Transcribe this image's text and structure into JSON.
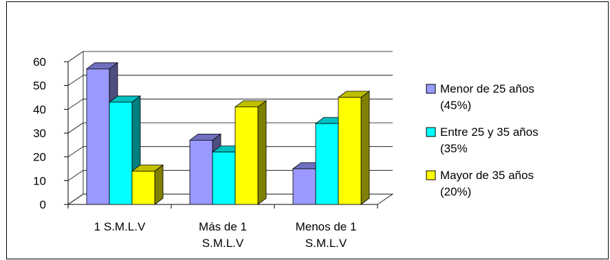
{
  "chart_data": {
    "type": "bar",
    "style": "3d-clustered-column",
    "title": "",
    "xlabel": "",
    "ylabel": "",
    "ylim": [
      0,
      60
    ],
    "yticks": [
      "0",
      "10",
      "20",
      "30",
      "40",
      "50",
      "60"
    ],
    "grid": true,
    "legend": "right",
    "categories": [
      [
        "1 S.M.L.V"
      ],
      [
        "Más de 1",
        "S.M.L.V"
      ],
      [
        "Menos de 1",
        "S.M.L.V"
      ]
    ],
    "series": [
      {
        "name": [
          "Menor de 25 años",
          "(45%)"
        ],
        "color": "#9999FF",
        "side": "#4D4D80",
        "top": "#6F6FC0",
        "values": [
          57,
          27,
          15
        ]
      },
      {
        "name": [
          "Entre 25 y 35 años",
          "(35%"
        ],
        "color": "#00FFFF",
        "side": "#008080",
        "top": "#00BFBF",
        "values": [
          43,
          22,
          34
        ]
      },
      {
        "name": [
          "Mayor de 35 años",
          "(20%)"
        ],
        "color": "#FFFF00",
        "side": "#808000",
        "top": "#BFBF00",
        "values": [
          14,
          41,
          45
        ]
      }
    ]
  }
}
